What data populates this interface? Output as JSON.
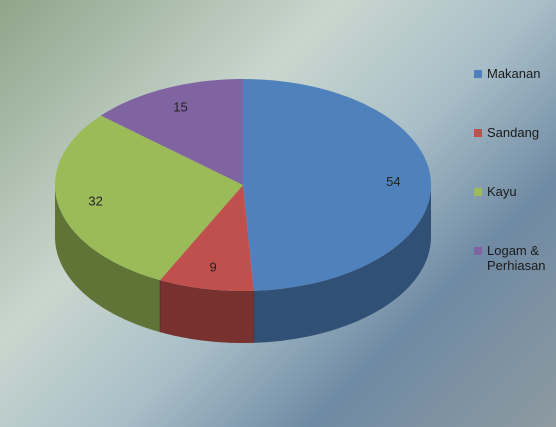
{
  "chart_data": {
    "type": "pie3d",
    "categories": [
      "Makanan",
      "Sandang",
      "Kayu",
      "Logam & Perhiasan"
    ],
    "values": [
      54,
      9,
      32,
      15
    ],
    "colors": [
      "#4f81bd",
      "#c0504d",
      "#9bbb59",
      "#8064a2"
    ],
    "legend": "right"
  }
}
